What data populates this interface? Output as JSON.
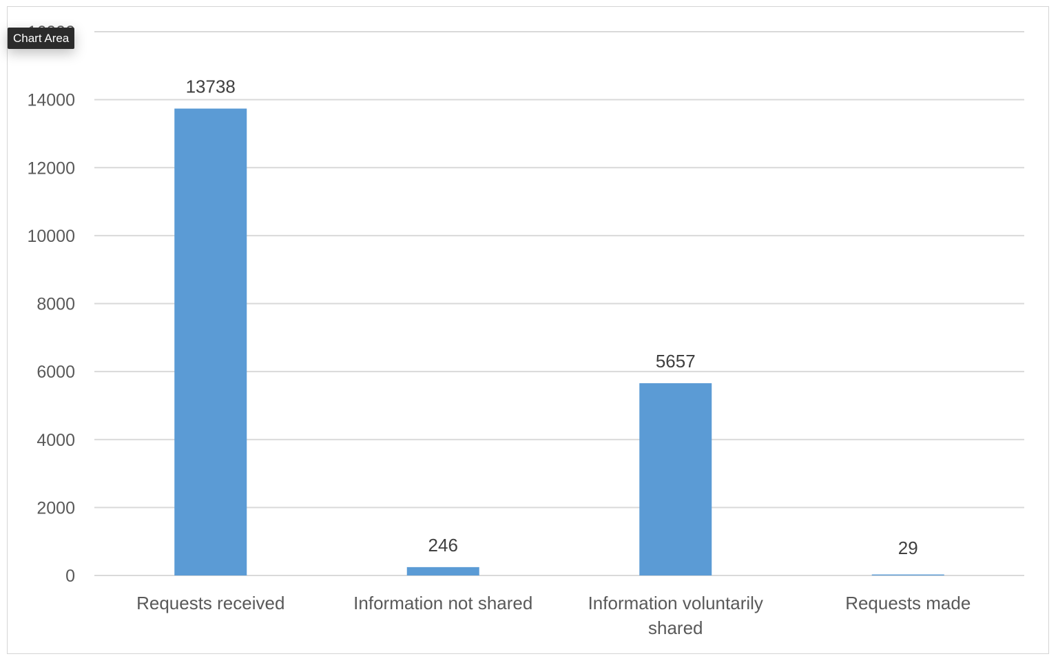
{
  "tooltip": {
    "text": "Chart Area"
  },
  "colors": {
    "bar": "#5b9bd5",
    "grid": "#d9d9d9",
    "frame": "#d4d4d4",
    "tick_text": "#595959",
    "data_label_text": "#404040",
    "tooltip_bg": "#2b2b2b"
  },
  "chart_data": {
    "type": "bar",
    "categories": [
      [
        "Requests received"
      ],
      [
        "Information not shared"
      ],
      [
        "Information voluntarily",
        "shared"
      ],
      [
        "Requests made"
      ]
    ],
    "values": [
      13738,
      246,
      5657,
      29
    ],
    "data_labels": [
      "13738",
      "246",
      "5657",
      "29"
    ],
    "y_ticks": [
      0,
      2000,
      4000,
      6000,
      8000,
      10000,
      12000,
      14000,
      16000
    ],
    "ylim": [
      0,
      16000
    ],
    "grid": true,
    "legend": "none",
    "title": "",
    "xlabel": "",
    "ylabel": ""
  }
}
